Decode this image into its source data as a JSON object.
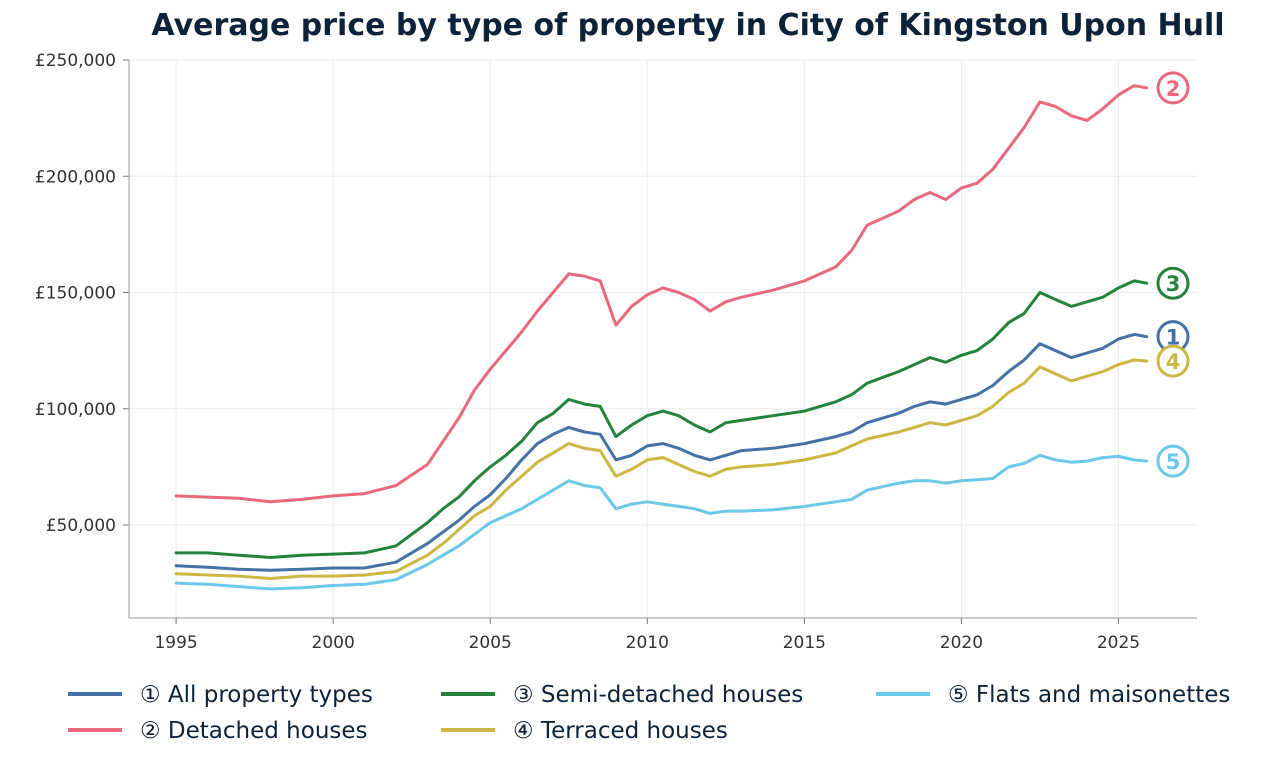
{
  "chart_data": {
    "type": "line",
    "title": "Average price by type of property in City of Kingston Upon Hull",
    "xlabel": "",
    "ylabel": "",
    "xlim": [
      1993.5,
      2027.5
    ],
    "ylim": [
      10000,
      250000
    ],
    "x_ticks": [
      1995,
      2000,
      2005,
      2010,
      2015,
      2020,
      2025
    ],
    "x_tick_labels": [
      "1995",
      "2000",
      "2005",
      "2010",
      "2015",
      "2020",
      "2025"
    ],
    "y_ticks": [
      50000,
      100000,
      150000,
      200000,
      250000
    ],
    "y_tick_labels": [
      "£50,000",
      "£100,000",
      "£150,000",
      "£200,000",
      "£250,000"
    ],
    "grid": true,
    "legend_position": "bottom",
    "series": [
      {
        "name": "① All property types",
        "marker": "1",
        "color": "#4472a4",
        "x": [
          1995.0,
          1996.0,
          1997.0,
          1998.0,
          1999.0,
          2000.0,
          2001.0,
          2002.0,
          2003.0,
          2003.5,
          2004.0,
          2004.5,
          2005.0,
          2005.5,
          2006.0,
          2006.5,
          2007.0,
          2007.5,
          2008.0,
          2008.5,
          2009.0,
          2009.5,
          2010.0,
          2010.5,
          2011.0,
          2011.5,
          2012.0,
          2012.5,
          2013.0,
          2014.0,
          2015.0,
          2016.0,
          2016.5,
          2017.0,
          2018.0,
          2018.5,
          2019.0,
          2019.5,
          2020.0,
          2020.5,
          2021.0,
          2021.5,
          2022.0,
          2022.5,
          2023.0,
          2023.5,
          2024.0,
          2024.5,
          2025.0,
          2025.5,
          2025.9
        ],
        "values": [
          32500,
          31800,
          31000,
          30500,
          31000,
          31500,
          31500,
          34000,
          42000,
          47000,
          52000,
          58000,
          63000,
          70000,
          78000,
          85000,
          89000,
          92000,
          90000,
          89000,
          78000,
          80000,
          84000,
          85000,
          83000,
          80000,
          78000,
          80000,
          82000,
          83000,
          85000,
          88000,
          90000,
          94000,
          98000,
          101000,
          103000,
          102000,
          104000,
          106000,
          110000,
          116000,
          121000,
          128000,
          125000,
          122000,
          124000,
          126000,
          130000,
          132000,
          131000
        ]
      },
      {
        "name": "② Detached houses",
        "marker": "2",
        "color": "#e8697d",
        "x": [
          1995.0,
          1996.0,
          1997.0,
          1998.0,
          1999.0,
          2000.0,
          2001.0,
          2002.0,
          2003.0,
          2003.5,
          2004.0,
          2004.5,
          2005.0,
          2005.5,
          2006.0,
          2006.5,
          2007.0,
          2007.5,
          2008.0,
          2008.5,
          2009.0,
          2009.5,
          2010.0,
          2010.5,
          2011.0,
          2011.5,
          2012.0,
          2012.5,
          2013.0,
          2014.0,
          2015.0,
          2016.0,
          2016.5,
          2017.0,
          2018.0,
          2018.5,
          2019.0,
          2019.5,
          2020.0,
          2020.5,
          2021.0,
          2021.5,
          2022.0,
          2022.5,
          2023.0,
          2023.5,
          2024.0,
          2024.5,
          2025.0,
          2025.5,
          2025.9
        ],
        "values": [
          62500,
          62000,
          61500,
          60000,
          61000,
          62500,
          63500,
          67000,
          76000,
          86000,
          96000,
          108000,
          117000,
          125000,
          133000,
          142000,
          150000,
          158000,
          157000,
          155000,
          136000,
          144000,
          149000,
          152000,
          150000,
          147000,
          142000,
          146000,
          148000,
          151000,
          155000,
          161000,
          168000,
          179000,
          185000,
          190000,
          193000,
          190000,
          195000,
          197000,
          203000,
          212000,
          221000,
          232000,
          230000,
          226000,
          224000,
          229000,
          235000,
          239000,
          238000
        ]
      },
      {
        "name": "③ Semi-detached houses",
        "marker": "3",
        "color": "#23833a",
        "x": [
          1995.0,
          1996.0,
          1997.0,
          1998.0,
          1999.0,
          2000.0,
          2001.0,
          2002.0,
          2003.0,
          2003.5,
          2004.0,
          2004.5,
          2005.0,
          2005.5,
          2006.0,
          2006.5,
          2007.0,
          2007.5,
          2008.0,
          2008.5,
          2009.0,
          2009.5,
          2010.0,
          2010.5,
          2011.0,
          2011.5,
          2012.0,
          2012.5,
          2013.0,
          2014.0,
          2015.0,
          2016.0,
          2016.5,
          2017.0,
          2018.0,
          2018.5,
          2019.0,
          2019.5,
          2020.0,
          2020.5,
          2021.0,
          2021.5,
          2022.0,
          2022.5,
          2023.0,
          2023.5,
          2024.0,
          2024.5,
          2025.0,
          2025.5,
          2025.9
        ],
        "values": [
          38000,
          38000,
          37000,
          36000,
          37000,
          37500,
          38000,
          41000,
          51000,
          57000,
          62000,
          69000,
          75000,
          80000,
          86000,
          94000,
          98000,
          104000,
          102000,
          101000,
          88000,
          93000,
          97000,
          99000,
          97000,
          93000,
          90000,
          94000,
          95000,
          97000,
          99000,
          103000,
          106000,
          111000,
          116000,
          119000,
          122000,
          120000,
          123000,
          125000,
          130000,
          137000,
          141000,
          150000,
          147000,
          144000,
          146000,
          148000,
          152000,
          155000,
          154000
        ]
      },
      {
        "name": "④ Terraced houses",
        "marker": "4",
        "color": "#cdb744",
        "x": [
          1995.0,
          1996.0,
          1997.0,
          1998.0,
          1999.0,
          2000.0,
          2001.0,
          2002.0,
          2003.0,
          2003.5,
          2004.0,
          2004.5,
          2005.0,
          2005.5,
          2006.0,
          2006.5,
          2007.0,
          2007.5,
          2008.0,
          2008.5,
          2009.0,
          2009.5,
          2010.0,
          2010.5,
          2011.0,
          2011.5,
          2012.0,
          2012.5,
          2013.0,
          2014.0,
          2015.0,
          2016.0,
          2016.5,
          2017.0,
          2018.0,
          2018.5,
          2019.0,
          2019.5,
          2020.0,
          2020.5,
          2021.0,
          2021.5,
          2022.0,
          2022.5,
          2023.0,
          2023.5,
          2024.0,
          2024.5,
          2025.0,
          2025.5,
          2025.9
        ],
        "values": [
          29000,
          28500,
          28000,
          27000,
          28000,
          28000,
          28500,
          30000,
          37000,
          42000,
          48000,
          54000,
          58000,
          65000,
          71000,
          77000,
          81000,
          85000,
          83000,
          82000,
          71000,
          74000,
          78000,
          79000,
          76000,
          73000,
          71000,
          74000,
          75000,
          76000,
          78000,
          81000,
          84000,
          87000,
          90000,
          92000,
          94000,
          93000,
          95000,
          97000,
          101000,
          107000,
          111000,
          118000,
          115000,
          112000,
          114000,
          116000,
          119000,
          121000,
          120500
        ]
      },
      {
        "name": "⑤ Flats and maisonettes",
        "marker": "5",
        "color": "#6ac8e8",
        "x": [
          1995.0,
          1996.0,
          1997.0,
          1998.0,
          1999.0,
          2000.0,
          2001.0,
          2002.0,
          2003.0,
          2003.5,
          2004.0,
          2004.5,
          2005.0,
          2005.5,
          2006.0,
          2006.5,
          2007.0,
          2007.5,
          2008.0,
          2008.5,
          2009.0,
          2009.5,
          2010.0,
          2010.5,
          2011.0,
          2011.5,
          2012.0,
          2012.5,
          2013.0,
          2014.0,
          2015.0,
          2016.0,
          2016.5,
          2017.0,
          2018.0,
          2018.5,
          2019.0,
          2019.5,
          2020.0,
          2020.5,
          2021.0,
          2021.5,
          2022.0,
          2022.5,
          2023.0,
          2023.5,
          2024.0,
          2024.5,
          2025.0,
          2025.5,
          2025.9
        ],
        "values": [
          25000,
          24500,
          23500,
          22500,
          23000,
          24000,
          24500,
          26500,
          33000,
          37000,
          41000,
          46000,
          51000,
          54000,
          57000,
          61000,
          65000,
          69000,
          67000,
          66000,
          57000,
          59000,
          60000,
          59000,
          58000,
          57000,
          55000,
          56000,
          56000,
          56500,
          58000,
          60000,
          61000,
          65000,
          68000,
          69000,
          69000,
          68000,
          69000,
          69500,
          70000,
          75000,
          76500,
          80000,
          78000,
          77000,
          77500,
          79000,
          79500,
          78000,
          77500
        ]
      }
    ]
  }
}
